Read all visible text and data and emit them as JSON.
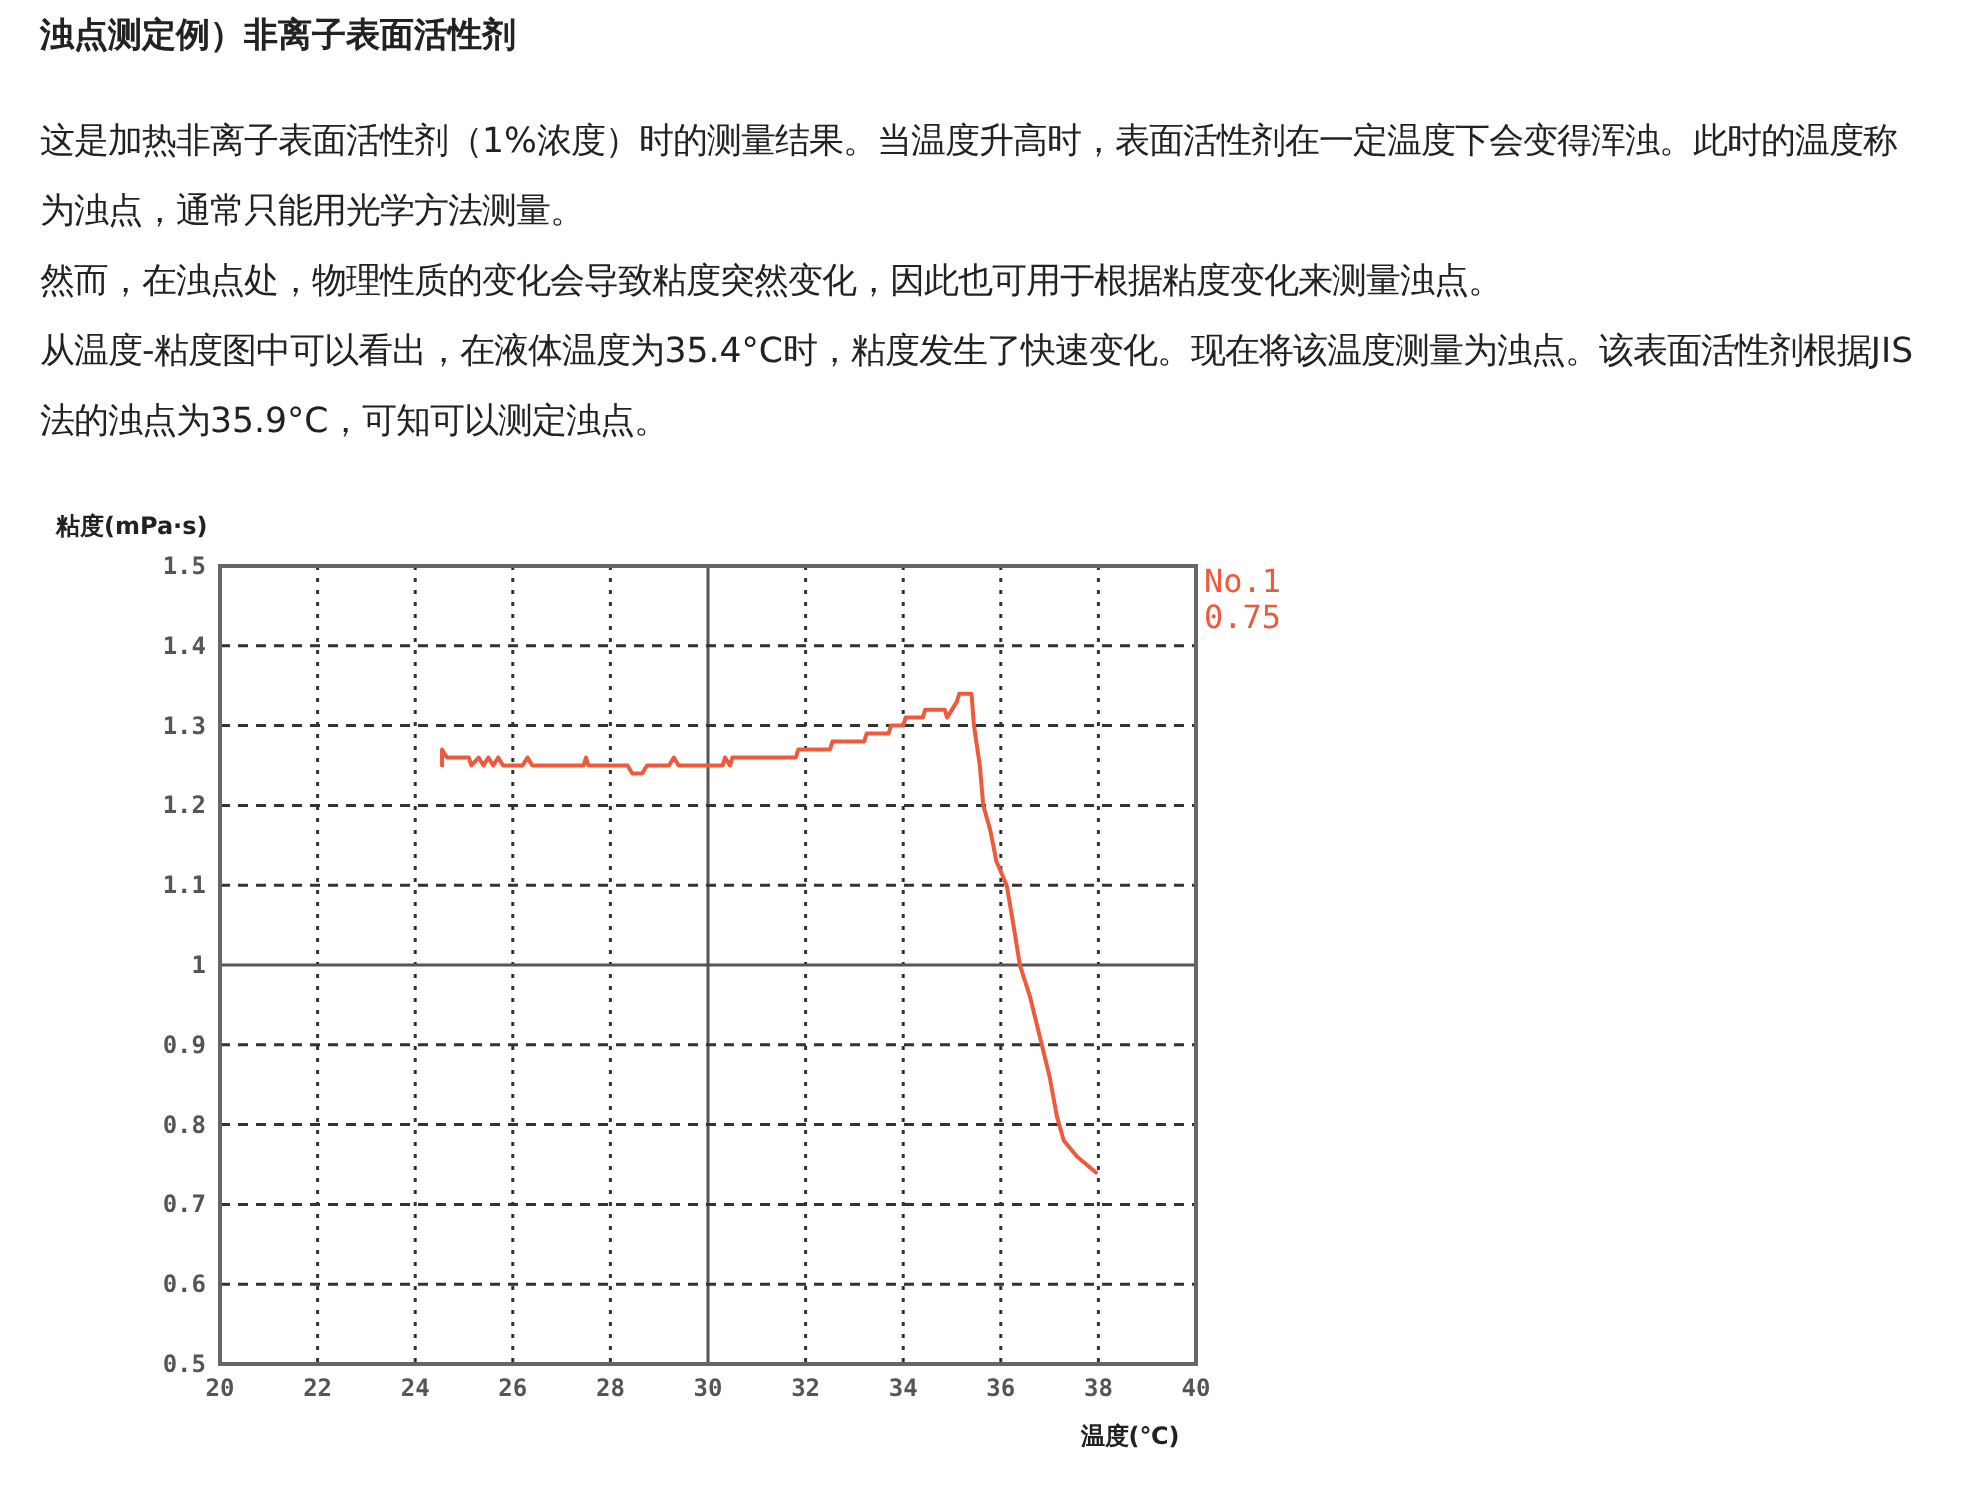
{
  "chart_data": {
    "type": "line",
    "title": "浊点测定例）非离子表面活性剂",
    "subtitle": "这是加热非离子表面活性剂（1%浓度）时的测量结果。当温度升高时，表面活性剂在一定温度下会变得浑浊。此时的温度称为浊点，通常只能用光学方法测量。",
    "annotations": [
      "然而，在浊点处，物理性质的变化会导致粘度突然变化，因此也可用于根据粘度变化来测量浊点。",
      "从温度-粘度图中可以看出，在液体温度为35.4°C时，粘度发生了快速变化。现在将该温度测量为浊点。该表面活性剂根据JIS法的浊点为35.9°C，可知可以测定浊点。"
    ],
    "xlabel": "温度(℃)",
    "ylabel": "粘度(mPa·s)",
    "xlim": [
      20,
      40
    ],
    "ylim": [
      0.5,
      1.5
    ],
    "xticks": [
      20,
      22,
      24,
      26,
      28,
      30,
      32,
      34,
      36,
      38,
      40
    ],
    "yticks": [
      0.5,
      0.6,
      0.7,
      0.8,
      0.9,
      1,
      1.1,
      1.2,
      1.3,
      1.4,
      1.5
    ],
    "grid": true,
    "legend": "top right",
    "series": [
      {
        "name": "No.1 0.75",
        "color": "#ee5a3c",
        "x": [
          24.55,
          24.55,
          24.65,
          25.1,
          25.15,
          25.3,
          25.4,
          25.5,
          25.6,
          25.7,
          25.8,
          26.2,
          26.3,
          26.4,
          27.45,
          27.5,
          27.55,
          28.35,
          28.45,
          28.65,
          28.75,
          29.2,
          29.3,
          29.4,
          30.3,
          30.35,
          30.45,
          30.5,
          31.8,
          31.85,
          32.5,
          32.55,
          33.2,
          33.25,
          33.7,
          33.75,
          34.0,
          34.05,
          34.4,
          34.45,
          34.85,
          34.9,
          35.0,
          35.1,
          35.15,
          35.4,
          35.45,
          35.57,
          35.64,
          35.78,
          35.91,
          36.12,
          36.26,
          36.39,
          36.6,
          36.8,
          37.0,
          37.15,
          37.29,
          37.56,
          37.95
        ],
        "values": [
          1.25,
          1.27,
          1.26,
          1.26,
          1.25,
          1.26,
          1.25,
          1.26,
          1.25,
          1.26,
          1.25,
          1.25,
          1.26,
          1.25,
          1.25,
          1.26,
          1.25,
          1.25,
          1.24,
          1.24,
          1.25,
          1.25,
          1.26,
          1.25,
          1.25,
          1.26,
          1.25,
          1.26,
          1.26,
          1.27,
          1.27,
          1.28,
          1.28,
          1.29,
          1.29,
          1.3,
          1.3,
          1.31,
          1.31,
          1.32,
          1.32,
          1.31,
          1.32,
          1.33,
          1.34,
          1.34,
          1.3,
          1.25,
          1.2,
          1.17,
          1.13,
          1.1,
          1.05,
          1.0,
          0.96,
          0.91,
          0.86,
          0.81,
          0.78,
          0.76,
          0.74
        ]
      }
    ]
  }
}
